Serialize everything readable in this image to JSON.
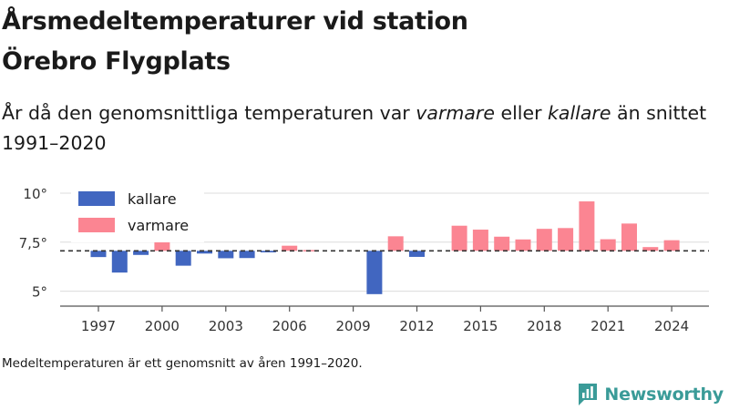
{
  "title_line1": "Årsmedeltemperaturer vid station",
  "title_line2": "Örebro Flygplats",
  "subtitle": {
    "pre": "År då den genomsnittliga temperaturen var ",
    "warm": "varmare",
    "mid": " eller ",
    "cold": "kallare",
    "post": " än snittet 1991–2020"
  },
  "footnote": "Medeltemperaturen är ett genomsnitt av åren 1991–2020.",
  "brand": {
    "name": "Newsworthy",
    "color": "#3a9b98"
  },
  "colors": {
    "kallare": "#4166c0",
    "varmare": "#fb8592",
    "baseline": "#333333"
  },
  "chart_data": {
    "type": "bar",
    "baseline": 7.06,
    "ylim": [
      4.1,
      10.3
    ],
    "yticks": [
      5,
      7.5,
      10
    ],
    "ytick_labels": [
      "5°",
      "7,5°",
      "10°"
    ],
    "xticks": [
      1997,
      2000,
      2003,
      2006,
      2009,
      2012,
      2015,
      2018,
      2021,
      2024
    ],
    "legend": [
      {
        "key": "kallare",
        "label": "kallare"
      },
      {
        "key": "varmare",
        "label": "varmare"
      }
    ],
    "legend_position": "top-left",
    "grid": true,
    "years": [
      1997,
      1998,
      1999,
      2000,
      2001,
      2002,
      2003,
      2004,
      2005,
      2006,
      2007,
      2010,
      2011,
      2012,
      2014,
      2015,
      2016,
      2017,
      2018,
      2019,
      2020,
      2021,
      2022,
      2023,
      2024
    ],
    "values": [
      6.74,
      5.95,
      6.85,
      7.62,
      6.3,
      6.92,
      6.68,
      6.69,
      6.98,
      7.32,
      7.1,
      4.85,
      7.8,
      6.75,
      8.34,
      8.14,
      7.78,
      7.64,
      8.18,
      8.22,
      9.58,
      7.65,
      8.45,
      7.25,
      7.6
    ]
  }
}
